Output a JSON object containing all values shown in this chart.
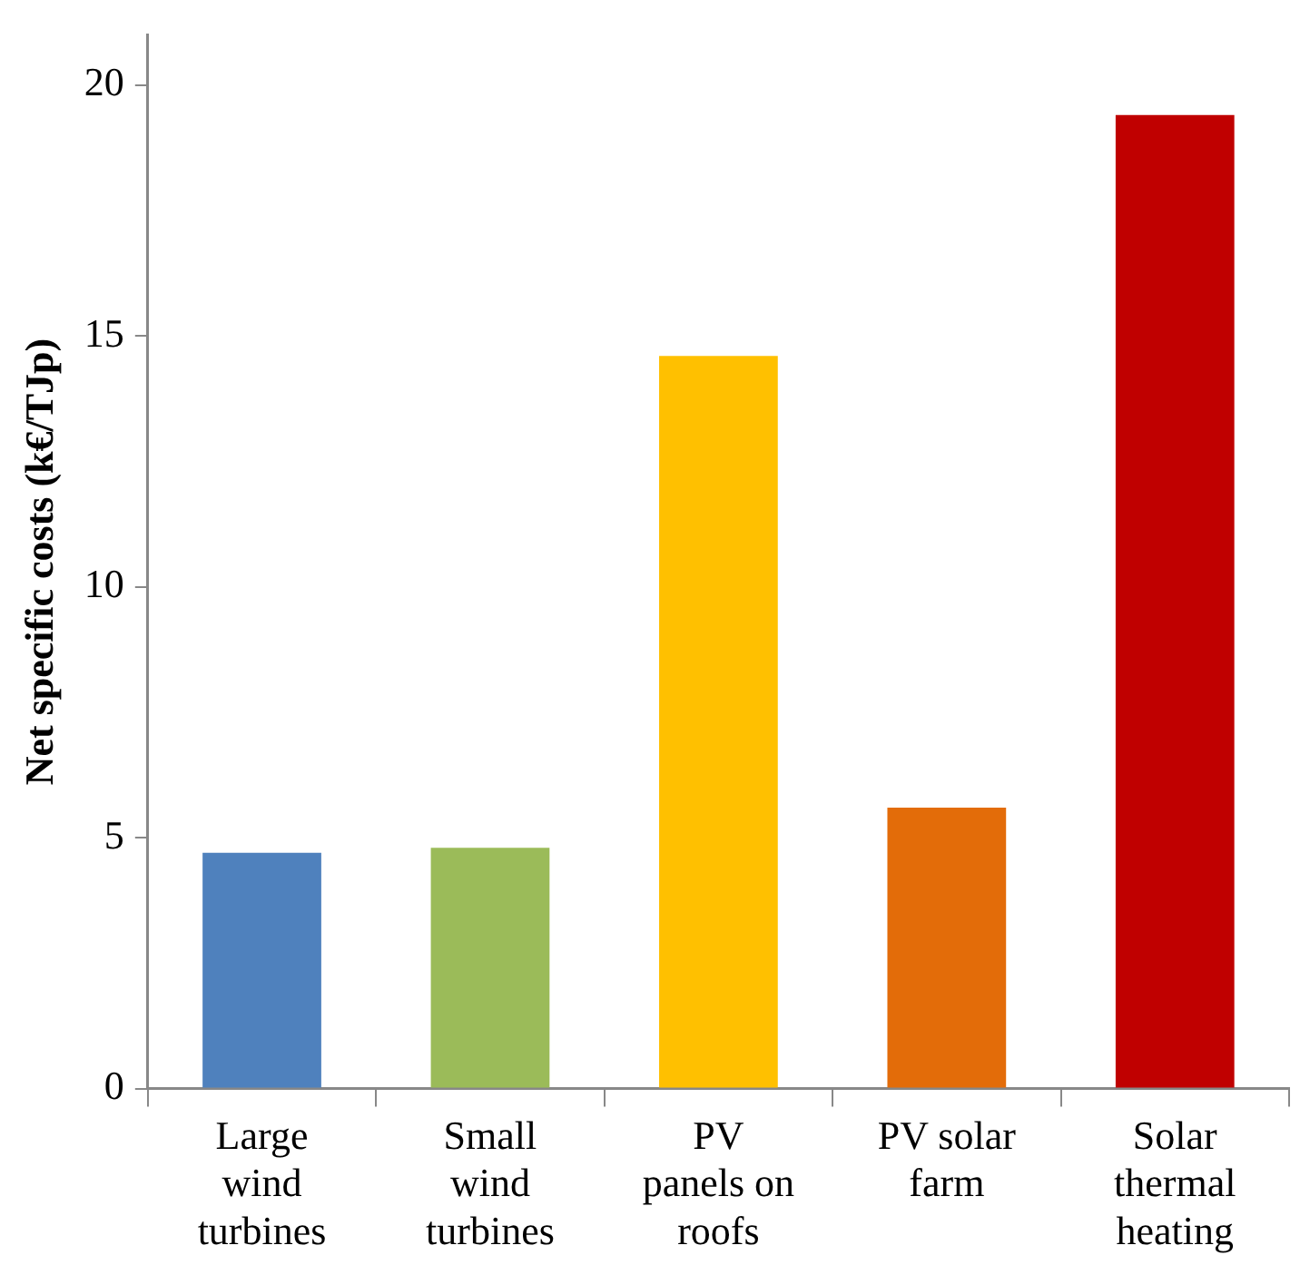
{
  "chart_data": {
    "type": "bar",
    "ylabel": "Net specific costs (k€/TJp)",
    "categories": [
      "Large wind turbines",
      "Small wind turbines",
      "PV panels on roofs",
      "PV solar farm",
      "Solar thermal heating"
    ],
    "values": [
      4.7,
      4.8,
      14.6,
      5.6,
      19.4
    ],
    "colors": [
      "#4f81bd",
      "#9bbb59",
      "#ffc000",
      "#e36c09",
      "#c00000"
    ],
    "ylim": [
      0,
      21
    ],
    "yticks": [
      0,
      5,
      10,
      15,
      20
    ],
    "grid": false,
    "legend": false
  }
}
